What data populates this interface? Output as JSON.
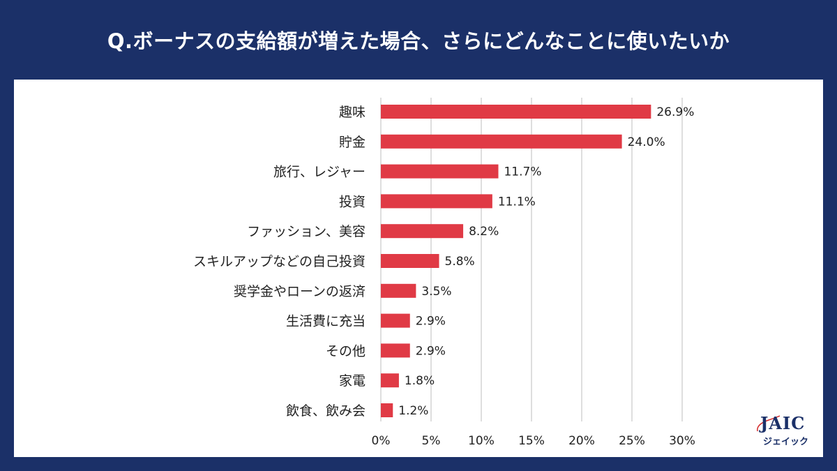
{
  "chart_data": {
    "type": "bar",
    "orientation": "horizontal",
    "title": "Q.ボーナスの支給額が増えた場合、さらにどんなことに使いたいか",
    "categories": [
      "趣味",
      "貯金",
      "旅行、レジャー",
      "投資",
      "ファッション、美容",
      "スキルアップなどの自己投資",
      "奨学金やローンの返済",
      "生活費に充当",
      "その他",
      "家電",
      "飲食、飲み会"
    ],
    "values": [
      26.9,
      24.0,
      11.7,
      11.1,
      8.2,
      5.8,
      3.5,
      2.9,
      2.9,
      1.8,
      1.2
    ],
    "data_labels": [
      "26.9%",
      "24.0%",
      "11.7%",
      "11.1%",
      "8.2%",
      "5.8%",
      "3.5%",
      "2.9%",
      "2.9%",
      "1.8%",
      "1.2%"
    ],
    "xlim": [
      0,
      30
    ],
    "x_ticks": [
      "0%",
      "5%",
      "10%",
      "15%",
      "20%",
      "25%",
      "30%"
    ],
    "grid": true,
    "xlabel": "",
    "ylabel": "",
    "bar_color": "#e03a45",
    "background_color": "#1b3068"
  },
  "logo": {
    "text": "JAIC",
    "subtext": "ジェイック"
  }
}
